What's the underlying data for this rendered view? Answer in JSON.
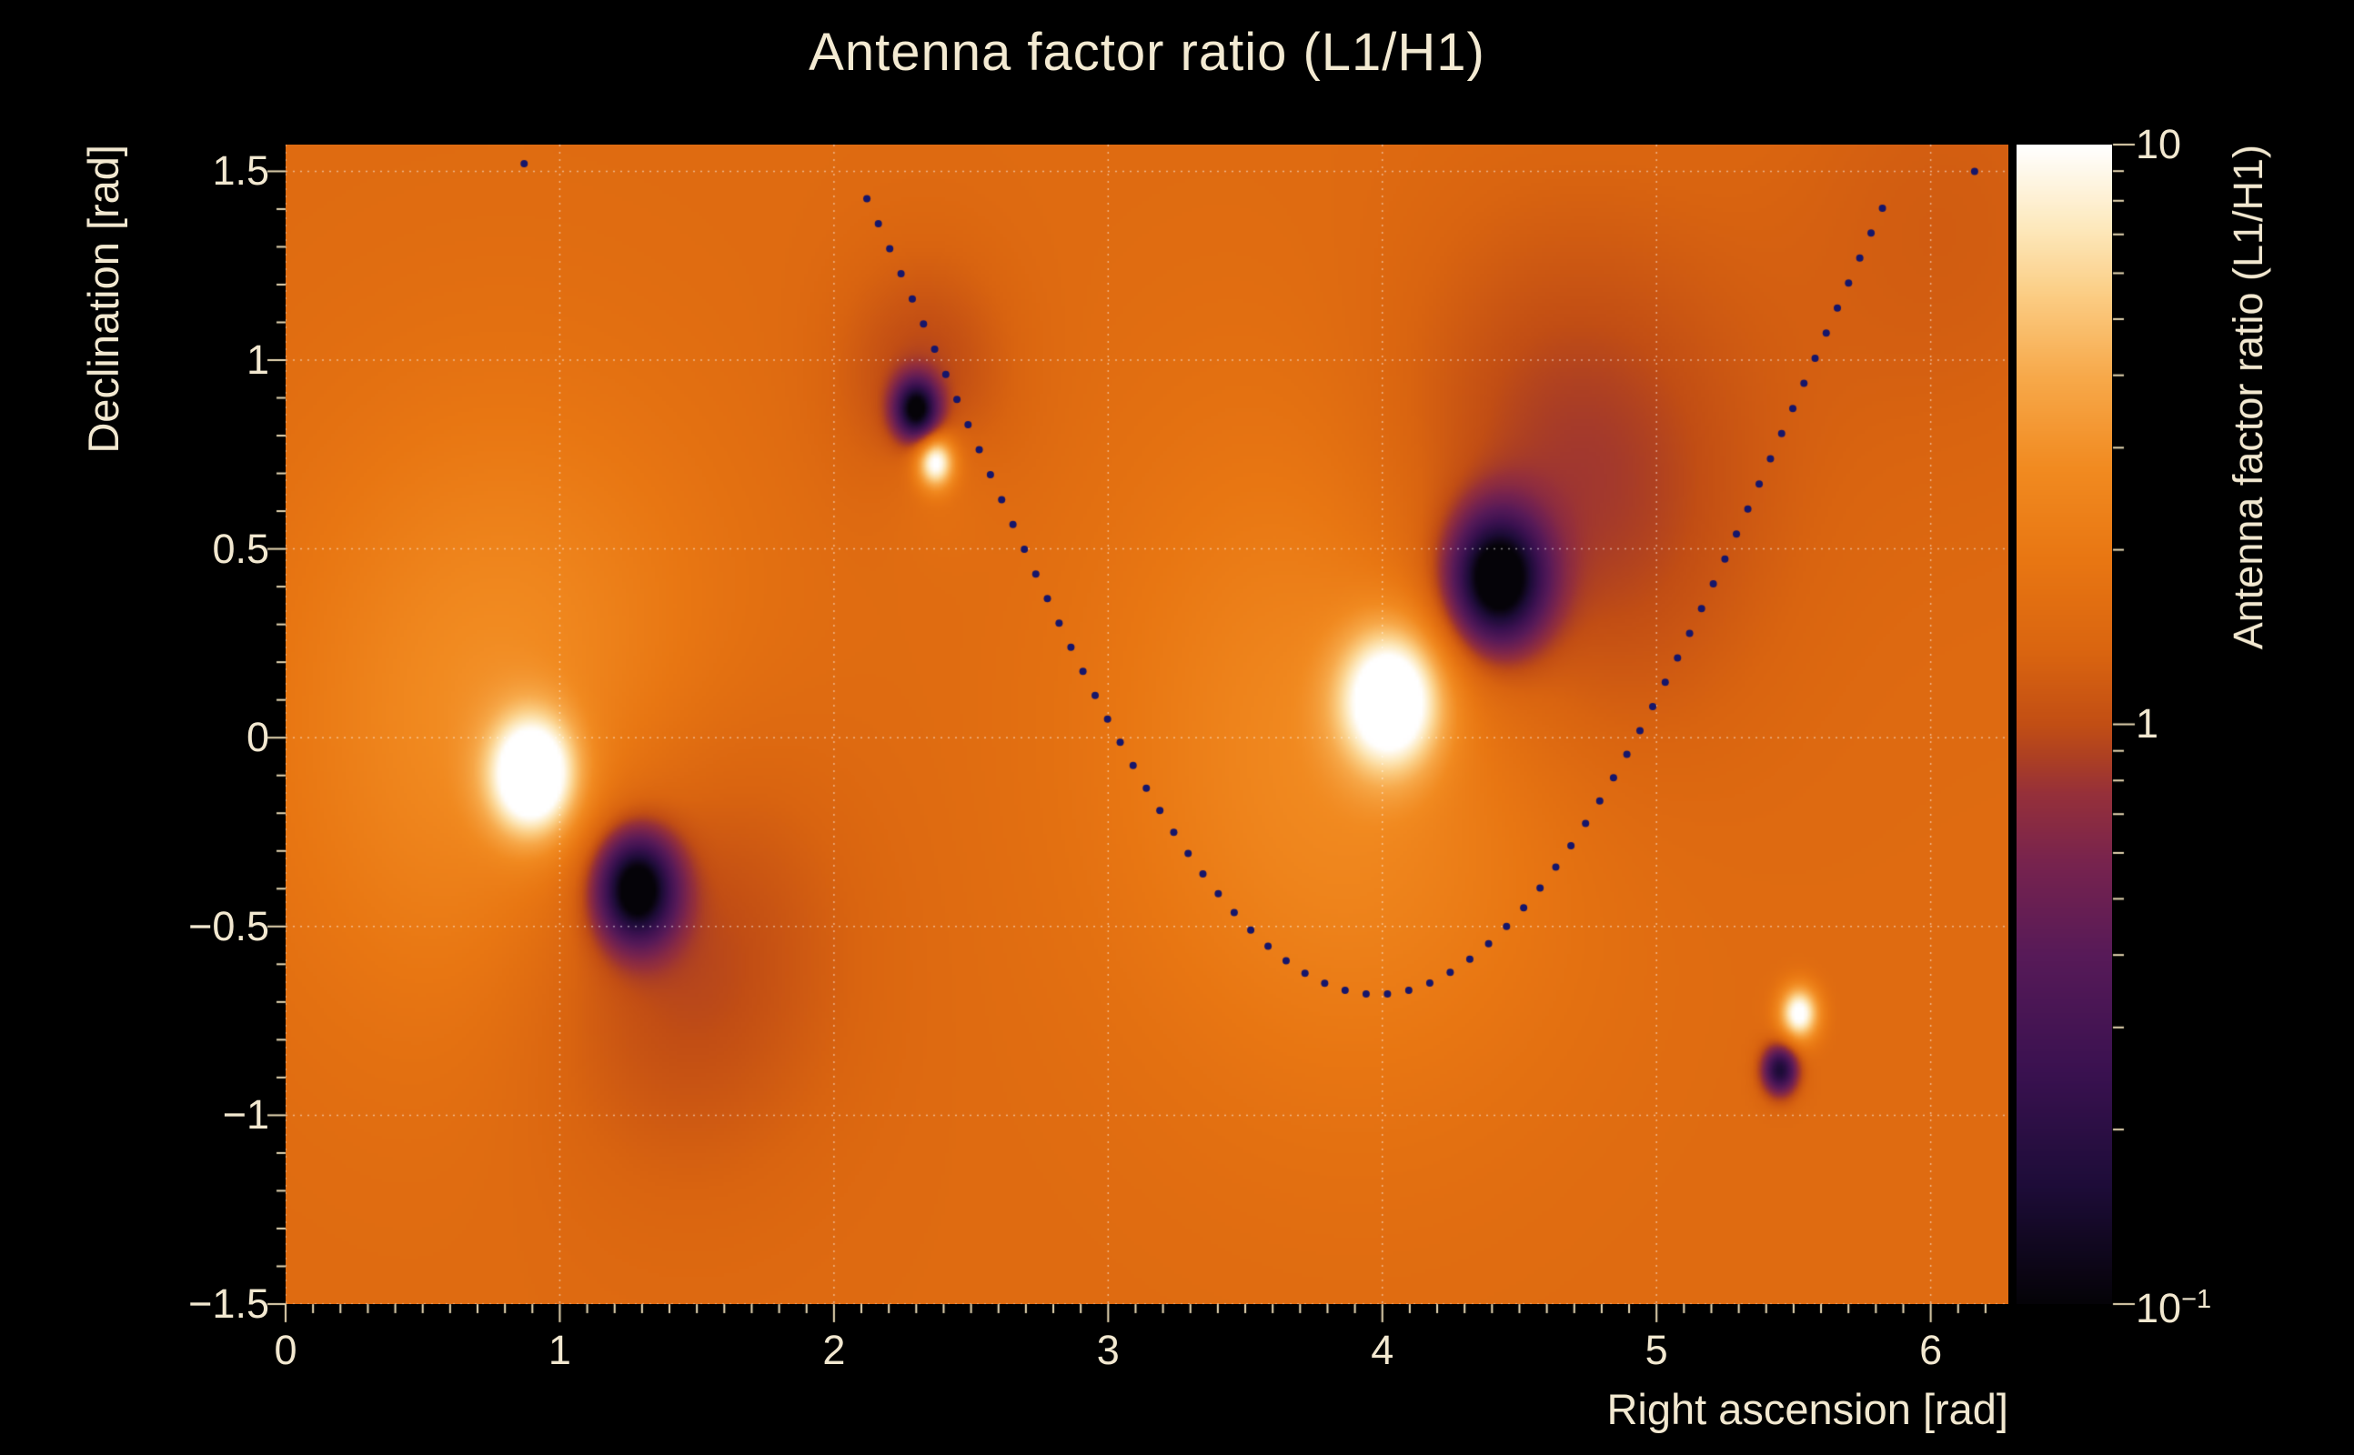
{
  "title": "Antenna factor ratio (L1/H1)",
  "colors": {
    "background": "#000000",
    "text": "#f2e8d0",
    "grid": "rgba(255,255,255,0.5)",
    "tick": "#e9dab4",
    "track_dot": "#16166b"
  },
  "axes": {
    "x_tick_labels": [
      "0",
      "1",
      "2",
      "3",
      "4",
      "5",
      "6"
    ],
    "y_tick_labels": [
      "1.5",
      "1",
      "0.5",
      "0",
      "−0.5",
      "−1",
      "−1.5"
    ]
  },
  "colorbar": {
    "top": {
      "base": "10",
      "exp": ""
    },
    "mid": {
      "base": "1",
      "exp": ""
    },
    "bottom": {
      "base": "10",
      "exp": "−1"
    }
  },
  "chart_data": {
    "type": "heatmap",
    "title": "Antenna factor ratio (L1/H1)",
    "xlabel": "Right ascension [rad]",
    "ylabel": "Declination [rad]",
    "zlabel": "Antenna factor ratio (L1/H1)",
    "x_range": [
      0,
      6.2832
    ],
    "y_range": [
      -1.5,
      1.5708
    ],
    "x_ticks": [
      0,
      1,
      2,
      3,
      4,
      5,
      6
    ],
    "y_ticks": [
      1.5,
      1,
      0.5,
      0,
      -0.5,
      -1,
      -1.5
    ],
    "z_scale": "log10",
    "z_range": [
      0.1,
      10
    ],
    "grid": true,
    "background_log10": 0.18,
    "features": [
      {
        "name": "bright-peak-1",
        "kind": "peak",
        "x": 0.9,
        "y": -0.1,
        "amp": 1.05,
        "sigma": 0.11
      },
      {
        "name": "bright-glow-1",
        "kind": "glow",
        "x": 0.8,
        "y": 0.05,
        "amp": 0.3,
        "sigma": 0.55
      },
      {
        "name": "dark-dip-1",
        "kind": "dip",
        "x": 1.28,
        "y": -0.4,
        "amp": -1.3,
        "sigma": 0.1
      },
      {
        "name": "dark-shade-1",
        "kind": "shade",
        "x": 1.42,
        "y": -0.54,
        "amp": -0.28,
        "sigma": 0.4
      },
      {
        "name": "dark-dip-2",
        "kind": "dip",
        "x": 2.3,
        "y": 0.87,
        "amp": -1.15,
        "sigma": 0.055
      },
      {
        "name": "dark-shade-2",
        "kind": "shade",
        "x": 2.33,
        "y": 0.95,
        "amp": -0.22,
        "sigma": 0.22
      },
      {
        "name": "bright-peak-2",
        "kind": "peak",
        "x": 2.37,
        "y": 0.73,
        "amp": 0.9,
        "sigma": 0.048
      },
      {
        "name": "bright-glow-2",
        "kind": "glow",
        "x": 2.38,
        "y": 0.68,
        "amp": 0.1,
        "sigma": 0.14
      },
      {
        "name": "bright-peak-3",
        "kind": "peak",
        "x": 4.03,
        "y": 0.1,
        "amp": 1.0,
        "sigma": 0.13
      },
      {
        "name": "bright-glow-3",
        "kind": "glow",
        "x": 3.9,
        "y": 0.0,
        "amp": 0.28,
        "sigma": 0.6
      },
      {
        "name": "dark-dip-3",
        "kind": "dip",
        "x": 4.42,
        "y": 0.42,
        "amp": -1.35,
        "sigma": 0.12
      },
      {
        "name": "dark-shade-3",
        "kind": "shade",
        "x": 4.65,
        "y": 0.62,
        "amp": -0.33,
        "sigma": 0.48
      },
      {
        "name": "bright-peak-4",
        "kind": "peak",
        "x": 5.52,
        "y": -0.73,
        "amp": 0.9,
        "sigma": 0.05
      },
      {
        "name": "dark-dip-4",
        "kind": "dip",
        "x": 5.45,
        "y": -0.88,
        "amp": -1.0,
        "sigma": 0.045
      },
      {
        "name": "corner-shade",
        "kind": "shade",
        "x": 6.05,
        "y": 1.35,
        "amp": -0.1,
        "sigma": 0.5
      }
    ],
    "track": {
      "model": "dec = c - a*cos(ra - x0)",
      "c": 0.96,
      "a": 1.64,
      "x0": 3.98,
      "x_start": 2.12,
      "x_end": 5.85,
      "dot_spacing_rad": 0.078,
      "extra_dots": [
        [
          0.87,
          1.52
        ],
        [
          6.16,
          1.5
        ]
      ]
    },
    "colormap": [
      [
        0.0,
        "#050308"
      ],
      [
        0.1,
        "#1d0c38"
      ],
      [
        0.2,
        "#3a1150"
      ],
      [
        0.3,
        "#571a58"
      ],
      [
        0.38,
        "#77234e"
      ],
      [
        0.44,
        "#96303a"
      ],
      [
        0.47,
        "#ac3f24"
      ],
      [
        0.5,
        "#c24e14"
      ],
      [
        0.56,
        "#d96410"
      ],
      [
        0.64,
        "#e87612"
      ],
      [
        0.72,
        "#f18a20"
      ],
      [
        0.8,
        "#f7a94a"
      ],
      [
        0.87,
        "#fbcd83"
      ],
      [
        0.93,
        "#fde9bd"
      ],
      [
        1.0,
        "#ffffff"
      ]
    ]
  }
}
